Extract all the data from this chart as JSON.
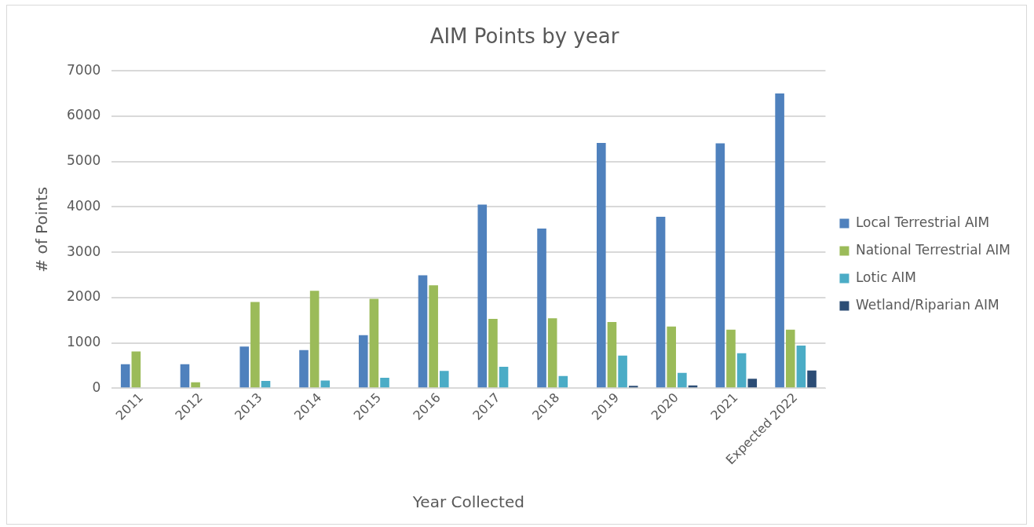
{
  "chart_data": {
    "type": "bar",
    "title": "AIM Points by year",
    "xlabel": "Year Collected",
    "ylabel": "# of Points",
    "categories": [
      "2011",
      "2012",
      "2013",
      "2014",
      "2015",
      "2016",
      "2017",
      "2018",
      "2019",
      "2020",
      "2021",
      "Expected 2022"
    ],
    "series": [
      {
        "name": "Local Terrestrial AIM",
        "color": "#4f81bd",
        "values": [
          530,
          530,
          920,
          840,
          1170,
          2490,
          4050,
          3520,
          5410,
          3780,
          5400,
          6500
        ]
      },
      {
        "name": "National Terrestrial AIM",
        "color": "#9bbb59",
        "values": [
          810,
          130,
          1900,
          2150,
          1970,
          2270,
          1530,
          1540,
          1460,
          1360,
          1290,
          1290
        ]
      },
      {
        "name": "Lotic AIM",
        "color": "#4bacc6",
        "values": [
          0,
          0,
          160,
          170,
          230,
          380,
          470,
          270,
          720,
          340,
          770,
          940
        ]
      },
      {
        "name": "Wetland/Riparian AIM",
        "color": "#2c4d75",
        "values": [
          0,
          0,
          0,
          0,
          0,
          0,
          0,
          0,
          50,
          60,
          210,
          390
        ]
      }
    ],
    "ylim": [
      0,
      7000
    ],
    "yticks": [
      0,
      1000,
      2000,
      3000,
      4000,
      5000,
      6000,
      7000
    ],
    "grid": "y",
    "legend": "right"
  }
}
